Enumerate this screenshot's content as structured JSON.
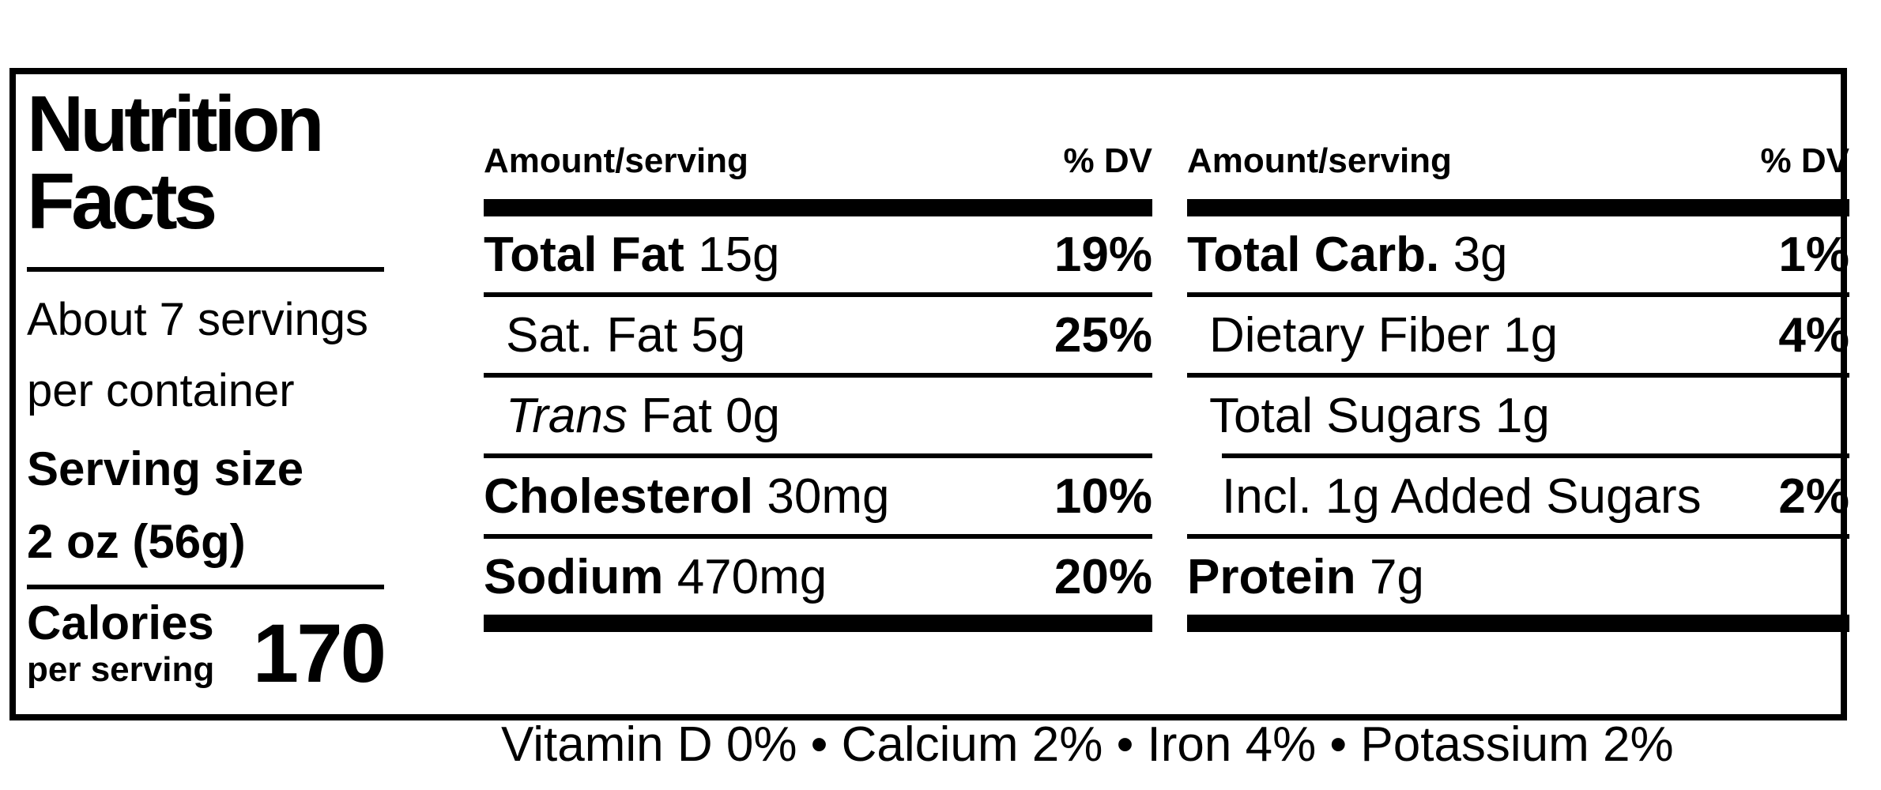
{
  "page": {
    "background": "#ffffff",
    "ink_color": "#000000"
  },
  "label": {
    "title_line1": "Nutrition",
    "title_line2": "Facts",
    "servings_line1": "About 7 servings",
    "servings_line2": "per container",
    "serving_size_label": "Serving size",
    "serving_size_value": "2 oz (56g)",
    "calories_label": "Calories",
    "calories_unit": "per serving",
    "calories_value": "170",
    "columns": [
      {
        "header_amount": "Amount/serving",
        "header_dv": "% DV",
        "rows": [
          {
            "n1": "Total Fat",
            "n2": "15g",
            "dv": "19%"
          },
          {
            "n1": "Sat. Fat 5g",
            "n2": "",
            "dv": "25%"
          },
          {
            "n1": "Trans",
            "n2": "Fat 0g",
            "dv": ""
          },
          {
            "n1": "Cholesterol",
            "n2": "30mg",
            "dv": "10%"
          },
          {
            "n1": "Sodium",
            "n2": "470mg",
            "dv": "20%"
          }
        ]
      },
      {
        "header_amount": "Amount/serving",
        "header_dv": "% DV",
        "rows": [
          {
            "n1": "Total Carb.",
            "n2": "3g",
            "dv": "1%"
          },
          {
            "n1": "Dietary Fiber 1g",
            "n2": "",
            "dv": "4%"
          },
          {
            "n1": "Total Sugars 1g",
            "n2": "",
            "dv": ""
          },
          {
            "n1": "Incl. 1g Added Sugars",
            "n2": "",
            "dv": "2%"
          },
          {
            "n1": "Protein",
            "n2": "7g",
            "dv": ""
          }
        ]
      }
    ],
    "micronutrients_line": "Vitamin D 0% • Calcium 2% • Iron 4% • Potassium 2%"
  }
}
